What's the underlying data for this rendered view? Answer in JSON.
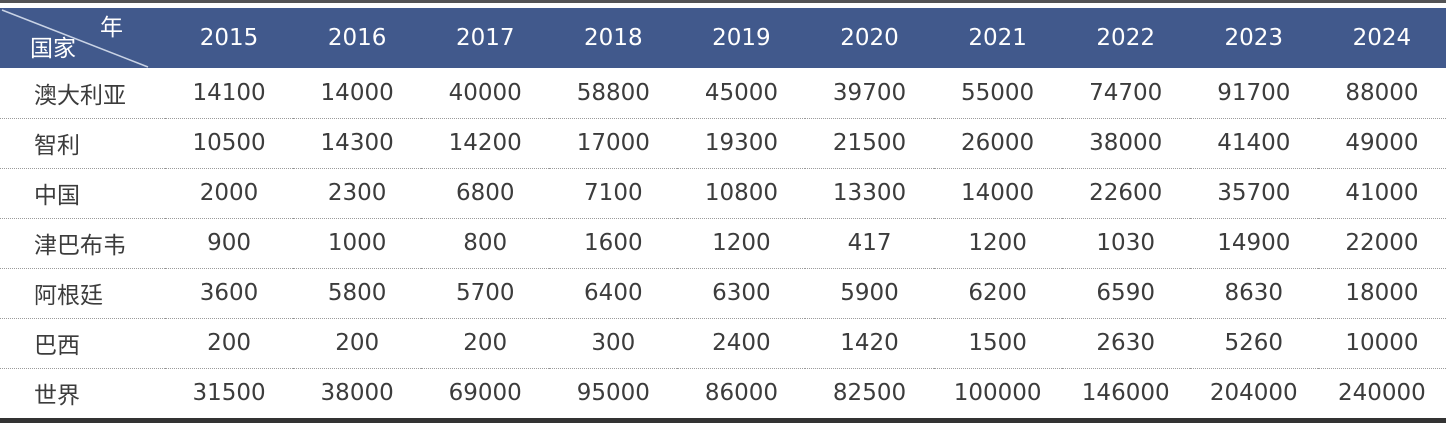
{
  "table": {
    "corner": {
      "axis_top_label": "年",
      "axis_left_label": "国家"
    },
    "years": [
      "2015",
      "2016",
      "2017",
      "2018",
      "2019",
      "2020",
      "2021",
      "2022",
      "2023",
      "2024"
    ],
    "rows": [
      {
        "country": "澳大利亚",
        "values": [
          "14100",
          "14000",
          "40000",
          "58800",
          "45000",
          "39700",
          "55000",
          "74700",
          "91700",
          "88000"
        ]
      },
      {
        "country": "智利",
        "values": [
          "10500",
          "14300",
          "14200",
          "17000",
          "19300",
          "21500",
          "26000",
          "38000",
          "41400",
          "49000"
        ]
      },
      {
        "country": "中国",
        "values": [
          "2000",
          "2300",
          "6800",
          "7100",
          "10800",
          "13300",
          "14000",
          "22600",
          "35700",
          "41000"
        ]
      },
      {
        "country": "津巴布韦",
        "values": [
          "900",
          "1000",
          "800",
          "1600",
          "1200",
          "417",
          "1200",
          "1030",
          "14900",
          "22000"
        ]
      },
      {
        "country": "阿根廷",
        "values": [
          "3600",
          "5800",
          "5700",
          "6400",
          "6300",
          "5900",
          "6200",
          "6590",
          "8630",
          "18000"
        ]
      },
      {
        "country": "巴西",
        "values": [
          "200",
          "200",
          "200",
          "300",
          "2400",
          "1420",
          "1500",
          "2630",
          "5260",
          "10000"
        ]
      },
      {
        "country": "世界",
        "values": [
          "31500",
          "38000",
          "69000",
          "95000",
          "86000",
          "82500",
          "100000",
          "146000",
          "204000",
          "240000"
        ]
      }
    ]
  },
  "colors": {
    "header_bg": "#41598C",
    "header_text": "#FFFFFF",
    "body_text": "#3C3C3C",
    "divider": "#9B9B9B",
    "top_rule": "#535355",
    "bottom_rule": "#333333",
    "diagonal_line": "#C9D3E5"
  },
  "chart_data": {
    "type": "table",
    "row_header_label": "国家",
    "column_header_label": "年",
    "categories": [
      2015,
      2016,
      2017,
      2018,
      2019,
      2020,
      2021,
      2022,
      2023,
      2024
    ],
    "series": [
      {
        "name": "澳大利亚",
        "values": [
          14100,
          14000,
          40000,
          58800,
          45000,
          39700,
          55000,
          74700,
          91700,
          88000
        ]
      },
      {
        "name": "智利",
        "values": [
          10500,
          14300,
          14200,
          17000,
          19300,
          21500,
          26000,
          38000,
          41400,
          49000
        ]
      },
      {
        "name": "中国",
        "values": [
          2000,
          2300,
          6800,
          7100,
          10800,
          13300,
          14000,
          22600,
          35700,
          41000
        ]
      },
      {
        "name": "津巴布韦",
        "values": [
          900,
          1000,
          800,
          1600,
          1200,
          417,
          1200,
          1030,
          14900,
          22000
        ]
      },
      {
        "name": "阿根廷",
        "values": [
          3600,
          5800,
          5700,
          6400,
          6300,
          5900,
          6200,
          6590,
          8630,
          18000
        ]
      },
      {
        "name": "巴西",
        "values": [
          200,
          200,
          200,
          300,
          2400,
          1420,
          1500,
          2630,
          5260,
          10000
        ]
      },
      {
        "name": "世界",
        "values": [
          31500,
          38000,
          69000,
          95000,
          86000,
          82500,
          100000,
          146000,
          204000,
          240000
        ]
      }
    ],
    "legend_position": "none",
    "grid": "dotted-row-separators"
  }
}
